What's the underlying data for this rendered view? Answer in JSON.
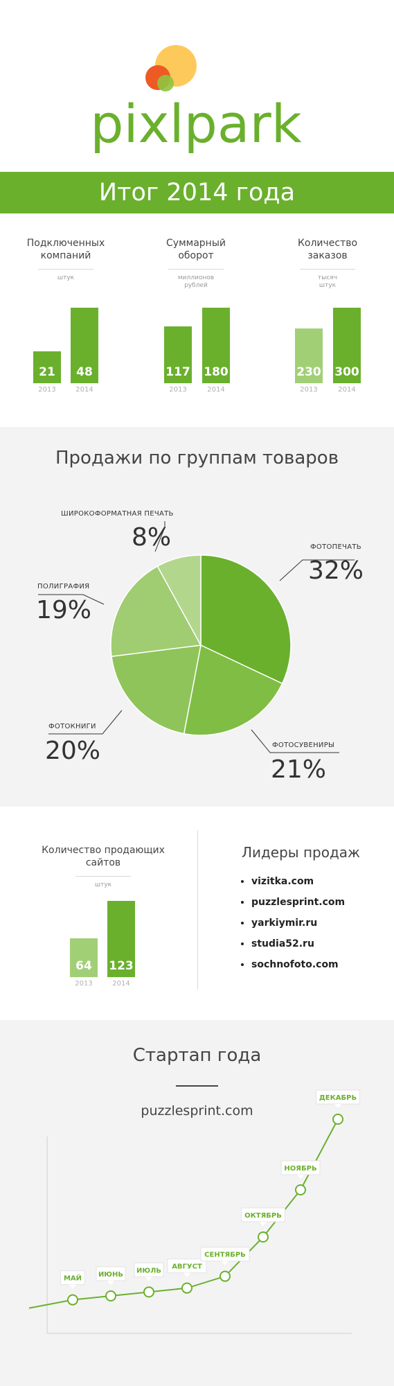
{
  "logo": {
    "text": "pixlpark"
  },
  "banner": {
    "title": "Итог 2014 года"
  },
  "kpis": [
    {
      "title_l1": "Подключенных",
      "title_l2": "компаний",
      "unit_l1": "штук",
      "unit_l2": "",
      "v2013": "21",
      "v2014": "48",
      "y2013": "2013",
      "y2014": "2014"
    },
    {
      "title_l1": "Суммарный",
      "title_l2": "оборот",
      "unit_l1": "миллионов",
      "unit_l2": "рублей",
      "v2013": "117",
      "v2014": "180",
      "y2013": "2013",
      "y2014": "2014"
    },
    {
      "title_l1": "Количество",
      "title_l2": "заказов",
      "unit_l1": "тысяч",
      "unit_l2": "штук",
      "v2013": "230",
      "v2014": "300",
      "y2013": "2013",
      "y2014": "2014"
    }
  ],
  "sales": {
    "title": "Продажи по группам товаров",
    "slices": [
      {
        "label": "ФОТОПЕЧАТЬ",
        "pct": "32%",
        "value": 32
      },
      {
        "label": "ФОТОСУВЕНИРЫ",
        "pct": "21%",
        "value": 21
      },
      {
        "label": "ФОТОКНИГИ",
        "pct": "20%",
        "value": 20
      },
      {
        "label": "ПОЛИГРАФИЯ",
        "pct": "19%",
        "value": 19
      },
      {
        "label": "ШИРОКОФОРМАТНАЯ ПЕЧАТЬ",
        "pct": "8%",
        "value": 8
      }
    ],
    "colors": [
      "#6ab02d",
      "#80bd45",
      "#8fc45a",
      "#a0cc72",
      "#b3d68d"
    ]
  },
  "sites": {
    "title_l1": "Количество продающих",
    "title_l2": "сайтов",
    "unit": "штук",
    "v2013": "64",
    "v2014": "123",
    "y2013": "2013",
    "y2014": "2014"
  },
  "leaders": {
    "title": "Лидеры продаж",
    "items": [
      "vizitka.com",
      "puzzlesprint.com",
      "yarkiymir.ru",
      "studia52.ru",
      "sochnofoto.com"
    ]
  },
  "startup": {
    "title": "Стартап года",
    "site": "puzzlesprint.com"
  },
  "chart_data": [
    {
      "type": "bar",
      "title": "Подключенных компаний",
      "ylabel": "штук",
      "categories": [
        "2013",
        "2014"
      ],
      "values": [
        21,
        48
      ]
    },
    {
      "type": "bar",
      "title": "Суммарный оборот",
      "ylabel": "миллионов рублей",
      "categories": [
        "2013",
        "2014"
      ],
      "values": [
        117,
        180
      ]
    },
    {
      "type": "bar",
      "title": "Количество заказов",
      "ylabel": "тысяч штук",
      "categories": [
        "2013",
        "2014"
      ],
      "values": [
        230,
        300
      ]
    },
    {
      "type": "pie",
      "title": "Продажи по группам товаров",
      "categories": [
        "ФОТОПЕЧАТЬ",
        "ФОТОСУВЕНИРЫ",
        "ФОТОКНИГИ",
        "ПОЛИГРАФИЯ",
        "ШИРОКОФОРМАТНАЯ ПЕЧАТЬ"
      ],
      "values": [
        32,
        21,
        20,
        19,
        8
      ]
    },
    {
      "type": "bar",
      "title": "Количество продающих сайтов",
      "ylabel": "штук",
      "categories": [
        "2013",
        "2014"
      ],
      "values": [
        64,
        123
      ]
    },
    {
      "type": "line",
      "title": "puzzlesprint.com",
      "categories": [
        "МАЙ",
        "ИЮНЬ",
        "ИЮЛЬ",
        "АВГУСТ",
        "СЕНТЯБРЬ",
        "ОКТЯБРЬ",
        "НОЯБРЬ",
        "ДЕКАБРЬ"
      ],
      "values": [
        1,
        1.5,
        2,
        2.5,
        4,
        9,
        15,
        24
      ],
      "ylim": [
        0,
        30
      ],
      "grid": false
    }
  ]
}
